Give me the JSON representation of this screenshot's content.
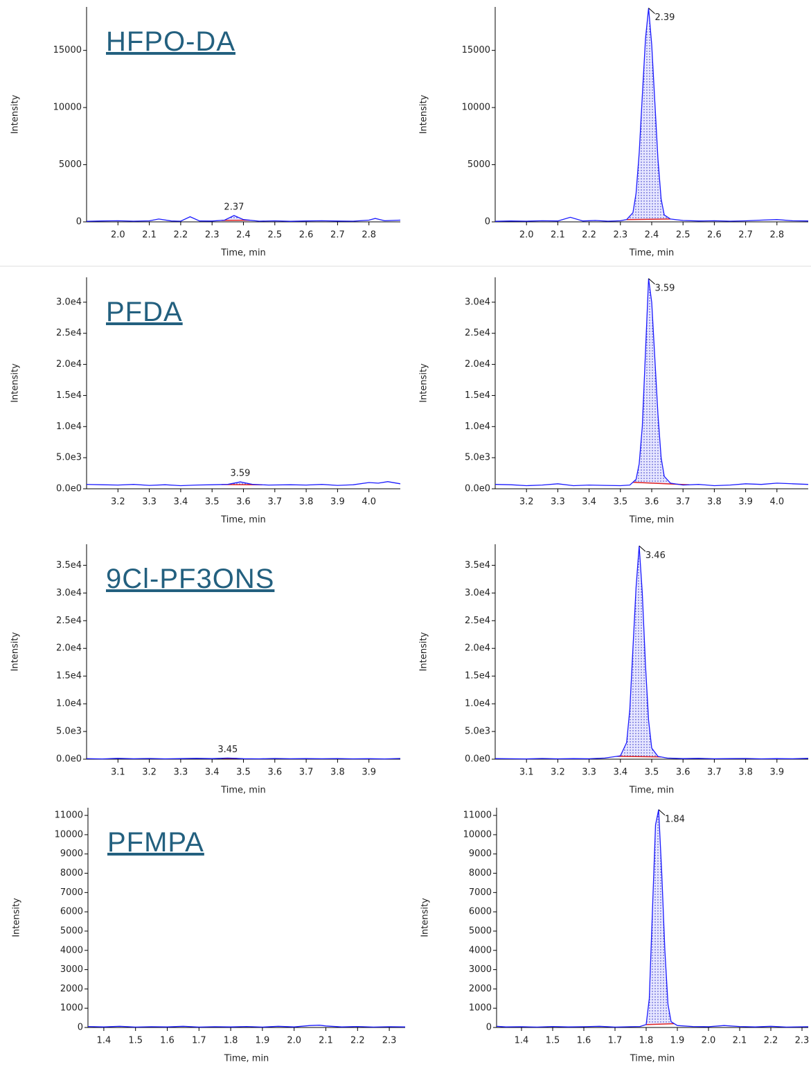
{
  "chart_data": [
    {
      "type": "line",
      "title": "HFPO-DA",
      "xlabel": "Time, min",
      "ylabel": "Intensity",
      "color": "#1a1aff",
      "x": [
        1.9,
        1.95,
        2.0,
        2.05,
        2.1,
        2.13,
        2.17,
        2.2,
        2.23,
        2.26,
        2.3,
        2.34,
        2.37,
        2.4,
        2.45,
        2.5,
        2.55,
        2.6,
        2.65,
        2.7,
        2.75,
        2.8,
        2.82,
        2.85,
        2.9
      ],
      "values": [
        50,
        80,
        100,
        60,
        90,
        250,
        80,
        60,
        450,
        80,
        70,
        150,
        550,
        200,
        60,
        90,
        50,
        80,
        100,
        70,
        60,
        150,
        300,
        100,
        150
      ],
      "peak": 2.37,
      "peak_window": [
        2.33,
        2.42
      ],
      "xlim": [
        1.9,
        2.9
      ],
      "ylim": [
        0,
        18800
      ],
      "xticks": [
        {
          "value": 2,
          "label": "2.0"
        },
        2.1,
        2.2,
        2.3,
        2.4,
        2.5,
        2.6,
        2.7,
        2.8
      ],
      "yticks": [
        0,
        5000,
        10000,
        15000
      ]
    },
    {
      "type": "line",
      "xlabel": "Time, min",
      "ylabel": "Intensity",
      "color": "#1a1aff",
      "x": [
        1.9,
        1.95,
        2.0,
        2.05,
        2.1,
        2.14,
        2.18,
        2.22,
        2.26,
        2.3,
        2.32,
        2.34,
        2.35,
        2.36,
        2.37,
        2.38,
        2.39,
        2.4,
        2.41,
        2.42,
        2.43,
        2.44,
        2.46,
        2.5,
        2.55,
        2.6,
        2.65,
        2.7,
        2.75,
        2.8,
        2.85,
        2.9
      ],
      "values": [
        50,
        80,
        60,
        100,
        80,
        400,
        80,
        120,
        60,
        100,
        200,
        800,
        2500,
        6000,
        11000,
        16000,
        18700,
        15500,
        10500,
        5500,
        2000,
        600,
        250,
        120,
        80,
        100,
        60,
        90,
        150,
        200,
        100,
        80
      ],
      "peak": 2.39,
      "peak_window": [
        2.32,
        2.46
      ],
      "xlim": [
        1.9,
        2.9
      ],
      "ylim": [
        0,
        18800
      ],
      "xticks": [
        {
          "value": 2,
          "label": "2.0"
        },
        2.1,
        2.2,
        2.3,
        2.4,
        2.5,
        2.6,
        2.7,
        2.8
      ],
      "yticks": [
        0,
        5000,
        10000,
        15000
      ]
    },
    {
      "type": "line",
      "title": "PFDA",
      "xlabel": "Time, min",
      "ylabel": "Intensity",
      "color": "#1a1aff",
      "x": [
        3.1,
        3.15,
        3.2,
        3.25,
        3.3,
        3.35,
        3.4,
        3.45,
        3.5,
        3.55,
        3.59,
        3.63,
        3.68,
        3.75,
        3.8,
        3.85,
        3.9,
        3.95,
        4.0,
        4.03,
        4.06,
        4.1
      ],
      "values": [
        700,
        650,
        600,
        700,
        550,
        650,
        500,
        600,
        650,
        700,
        1100,
        700,
        600,
        650,
        600,
        700,
        550,
        650,
        1000,
        900,
        1150,
        800
      ],
      "peak": 3.59,
      "peak_window": [
        3.53,
        3.66
      ],
      "xlim": [
        3.1,
        4.1
      ],
      "ylim": [
        0,
        34000
      ],
      "xticks": [
        3.2,
        3.3,
        3.4,
        3.5,
        3.6,
        3.7,
        3.8,
        3.9,
        {
          "value": 4,
          "label": "4.0"
        }
      ],
      "yticks": [
        {
          "value": 0,
          "label": "0.0e0"
        },
        {
          "value": 5000,
          "label": "5.0e3"
        },
        {
          "value": 10000,
          "label": "1.0e4"
        },
        {
          "value": 15000,
          "label": "1.5e4"
        },
        {
          "value": 20000,
          "label": "2.0e4"
        },
        {
          "value": 25000,
          "label": "2.5e4"
        },
        {
          "value": 30000,
          "label": "3.0e4"
        }
      ]
    },
    {
      "type": "line",
      "xlabel": "Time, min",
      "ylabel": "Intensity",
      "color": "#1a1aff",
      "x": [
        3.1,
        3.15,
        3.2,
        3.25,
        3.3,
        3.35,
        3.4,
        3.45,
        3.5,
        3.53,
        3.55,
        3.56,
        3.57,
        3.58,
        3.59,
        3.6,
        3.61,
        3.62,
        3.63,
        3.64,
        3.66,
        3.7,
        3.75,
        3.8,
        3.85,
        3.9,
        3.95,
        4.0,
        4.05,
        4.1
      ],
      "values": [
        700,
        650,
        500,
        600,
        800,
        500,
        600,
        550,
        500,
        600,
        1500,
        4000,
        10000,
        22000,
        33800,
        30000,
        21000,
        12000,
        5000,
        2000,
        900,
        600,
        700,
        500,
        600,
        800,
        700,
        900,
        800,
        700
      ],
      "peak": 3.59,
      "peak_window": [
        3.54,
        3.72
      ],
      "xlim": [
        3.1,
        4.1
      ],
      "ylim": [
        0,
        34000
      ],
      "xticks": [
        3.2,
        3.3,
        3.4,
        3.5,
        3.6,
        3.7,
        3.8,
        3.9,
        {
          "value": 4,
          "label": "4.0"
        }
      ],
      "yticks": [
        {
          "value": 0,
          "label": "0.0e0"
        },
        {
          "value": 5000,
          "label": "5.0e3"
        },
        {
          "value": 10000,
          "label": "1.0e4"
        },
        {
          "value": 15000,
          "label": "1.5e4"
        },
        {
          "value": 20000,
          "label": "2.0e4"
        },
        {
          "value": 25000,
          "label": "2.5e4"
        },
        {
          "value": 30000,
          "label": "3.0e4"
        }
      ]
    },
    {
      "type": "line",
      "title": "9Cl-PF3ONS",
      "xlabel": "Time, min",
      "ylabel": "Intensity",
      "color": "#1a1aff",
      "x": [
        3.0,
        3.05,
        3.1,
        3.15,
        3.2,
        3.25,
        3.3,
        3.35,
        3.4,
        3.45,
        3.5,
        3.55,
        3.6,
        3.65,
        3.7,
        3.75,
        3.8,
        3.85,
        3.9,
        3.95,
        4.0
      ],
      "values": [
        100,
        50,
        150,
        80,
        120,
        60,
        100,
        150,
        100,
        200,
        90,
        60,
        120,
        80,
        100,
        70,
        110,
        60,
        90,
        50,
        120
      ],
      "peak": 3.45,
      "peak_window": [
        3.43,
        3.48
      ],
      "xlim": [
        3.0,
        4.0
      ],
      "ylim": [
        0,
        38800
      ],
      "xticks": [
        3.1,
        3.2,
        3.3,
        3.4,
        3.5,
        3.6,
        3.7,
        3.8,
        3.9
      ],
      "yticks": [
        {
          "value": 0,
          "label": "0.0e0"
        },
        {
          "value": 5000,
          "label": "5.0e3"
        },
        {
          "value": 10000,
          "label": "1.0e4"
        },
        {
          "value": 15000,
          "label": "1.5e4"
        },
        {
          "value": 20000,
          "label": "2.0e4"
        },
        {
          "value": 25000,
          "label": "2.5e4"
        },
        {
          "value": 30000,
          "label": "3.0e4"
        },
        {
          "value": 35000,
          "label": "3.5e4"
        }
      ]
    },
    {
      "type": "line",
      "xlabel": "Time, min",
      "ylabel": "Intensity",
      "color": "#1a1aff",
      "x": [
        3.0,
        3.05,
        3.1,
        3.15,
        3.2,
        3.25,
        3.3,
        3.35,
        3.4,
        3.42,
        3.43,
        3.44,
        3.45,
        3.46,
        3.47,
        3.48,
        3.49,
        3.5,
        3.52,
        3.55,
        3.6,
        3.65,
        3.7,
        3.75,
        3.8,
        3.85,
        3.9,
        3.95,
        4.0
      ],
      "values": [
        100,
        80,
        50,
        120,
        60,
        100,
        80,
        200,
        600,
        3000,
        9000,
        20000,
        31000,
        38500,
        30000,
        17000,
        7000,
        2000,
        500,
        200,
        100,
        150,
        80,
        100,
        120,
        60,
        100,
        80,
        150
      ],
      "peak": 3.46,
      "peak_window": [
        3.39,
        3.53
      ],
      "xlim": [
        3.0,
        4.0
      ],
      "ylim": [
        0,
        38800
      ],
      "xticks": [
        3.1,
        3.2,
        3.3,
        3.4,
        3.5,
        3.6,
        3.7,
        3.8,
        3.9
      ],
      "yticks": [
        {
          "value": 0,
          "label": "0.0e0"
        },
        {
          "value": 5000,
          "label": "5.0e3"
        },
        {
          "value": 10000,
          "label": "1.0e4"
        },
        {
          "value": 15000,
          "label": "1.5e4"
        },
        {
          "value": 20000,
          "label": "2.0e4"
        },
        {
          "value": 25000,
          "label": "2.5e4"
        },
        {
          "value": 30000,
          "label": "3.0e4"
        },
        {
          "value": 35000,
          "label": "3.5e4"
        }
      ]
    },
    {
      "type": "line",
      "title": "PFMPA",
      "xlabel": "Time, min",
      "ylabel": "Intensity",
      "color": "#1a1aff",
      "x": [
        1.35,
        1.4,
        1.45,
        1.5,
        1.55,
        1.6,
        1.65,
        1.7,
        1.75,
        1.8,
        1.85,
        1.9,
        1.95,
        2.0,
        2.05,
        2.08,
        2.1,
        2.15,
        2.2,
        2.25,
        2.3,
        2.35
      ],
      "values": [
        50,
        30,
        60,
        20,
        40,
        30,
        60,
        20,
        40,
        30,
        50,
        20,
        60,
        30,
        100,
        120,
        80,
        30,
        50,
        20,
        40,
        30
      ],
      "xlim": [
        1.35,
        2.35
      ],
      "ylim": [
        0,
        11400
      ],
      "xticks": [
        1.4,
        1.5,
        1.6,
        1.7,
        1.8,
        1.9,
        {
          "value": 2,
          "label": "2.0"
        },
        2.1,
        2.2,
        2.3
      ],
      "yticks": [
        0,
        1000,
        2000,
        3000,
        4000,
        5000,
        6000,
        7000,
        8000,
        9000,
        10000,
        11000
      ]
    },
    {
      "type": "line",
      "xlabel": "Time, min",
      "ylabel": "Intensity",
      "color": "#1a1aff",
      "x": [
        1.32,
        1.35,
        1.4,
        1.45,
        1.5,
        1.55,
        1.6,
        1.65,
        1.7,
        1.75,
        1.78,
        1.8,
        1.81,
        1.82,
        1.83,
        1.84,
        1.85,
        1.86,
        1.87,
        1.88,
        1.9,
        1.95,
        2.0,
        2.05,
        2.1,
        2.15,
        2.2,
        2.25,
        2.32
      ],
      "values": [
        60,
        30,
        40,
        20,
        50,
        30,
        40,
        60,
        20,
        40,
        50,
        150,
        1500,
        6000,
        10500,
        11300,
        8000,
        4000,
        1200,
        300,
        100,
        50,
        40,
        100,
        50,
        30,
        60,
        20,
        40
      ],
      "peak": 1.84,
      "peak_window": [
        1.8,
        1.89
      ],
      "xlim": [
        1.32,
        2.32
      ],
      "ylim": [
        0,
        11400
      ],
      "xticks": [
        1.4,
        1.5,
        1.6,
        1.7,
        1.8,
        1.9,
        {
          "value": 2,
          "label": "2.0"
        },
        2.1,
        2.2,
        2.3
      ],
      "yticks": [
        0,
        1000,
        2000,
        3000,
        4000,
        5000,
        6000,
        7000,
        8000,
        9000,
        10000,
        11000
      ]
    }
  ]
}
